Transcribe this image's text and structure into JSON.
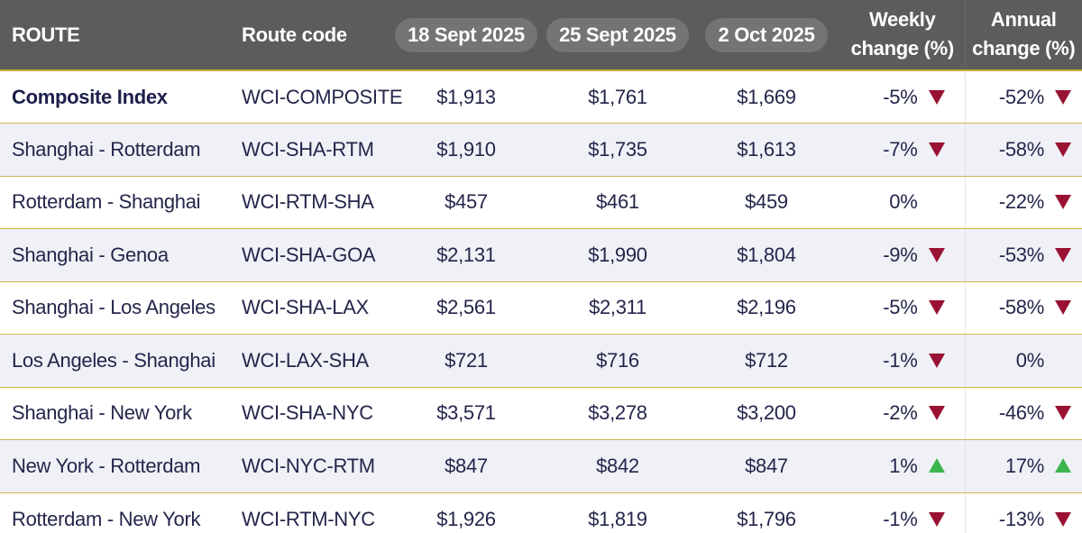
{
  "header": {
    "route": "ROUTE",
    "route_code": "Route code",
    "date_1": "18 Sept 2025",
    "date_2": "25 Sept 2025",
    "date_3": "2 Oct 2025",
    "weekly_change": "Weekly\nchange (%)",
    "annual_change": "Annual\nchange (%)"
  },
  "colors": {
    "header_bg": "#5c5c5c",
    "header_pill": "#747474",
    "text": "#23264a",
    "row_alt_bg": "#f0f1f7",
    "divider_gold": "#cfb449",
    "down_arrow": "#9a1233",
    "up_arrow": "#3cb54a"
  },
  "rows": [
    {
      "route": "Composite Index",
      "code": "WCI-COMPOSITE",
      "d1": "$1,913",
      "d2": "$1,761",
      "d3": "$1,669",
      "weekly": "-5%",
      "weekly_dir": "down",
      "annual": "-52%",
      "annual_dir": "down"
    },
    {
      "route": "Shanghai - Rotterdam",
      "code": "WCI-SHA-RTM",
      "d1": "$1,910",
      "d2": "$1,735",
      "d3": "$1,613",
      "weekly": "-7%",
      "weekly_dir": "down",
      "annual": "-58%",
      "annual_dir": "down"
    },
    {
      "route": "Rotterdam - Shanghai",
      "code": "WCI-RTM-SHA",
      "d1": "$457",
      "d2": "$461",
      "d3": "$459",
      "weekly": "0%",
      "weekly_dir": "none",
      "annual": "-22%",
      "annual_dir": "down"
    },
    {
      "route": "Shanghai - Genoa",
      "code": "WCI-SHA-GOA",
      "d1": "$2,131",
      "d2": "$1,990",
      "d3": "$1,804",
      "weekly": "-9%",
      "weekly_dir": "down",
      "annual": "-53%",
      "annual_dir": "down"
    },
    {
      "route": "Shanghai - Los Angeles",
      "code": "WCI-SHA-LAX",
      "d1": "$2,561",
      "d2": "$2,311",
      "d3": "$2,196",
      "weekly": "-5%",
      "weekly_dir": "down",
      "annual": "-58%",
      "annual_dir": "down"
    },
    {
      "route": "Los Angeles - Shanghai",
      "code": "WCI-LAX-SHA",
      "d1": "$721",
      "d2": "$716",
      "d3": "$712",
      "weekly": "-1%",
      "weekly_dir": "down",
      "annual": "0%",
      "annual_dir": "none"
    },
    {
      "route": "Shanghai - New York",
      "code": "WCI-SHA-NYC",
      "d1": "$3,571",
      "d2": "$3,278",
      "d3": "$3,200",
      "weekly": "-2%",
      "weekly_dir": "down",
      "annual": "-46%",
      "annual_dir": "down"
    },
    {
      "route": "New York - Rotterdam",
      "code": "WCI-NYC-RTM",
      "d1": "$847",
      "d2": "$842",
      "d3": "$847",
      "weekly": "1%",
      "weekly_dir": "up",
      "annual": "17%",
      "annual_dir": "up"
    },
    {
      "route": "Rotterdam - New York",
      "code": "WCI-RTM-NYC",
      "d1": "$1,926",
      "d2": "$1,819",
      "d3": "$1,796",
      "weekly": "-1%",
      "weekly_dir": "down",
      "annual": "-13%",
      "annual_dir": "down"
    }
  ]
}
